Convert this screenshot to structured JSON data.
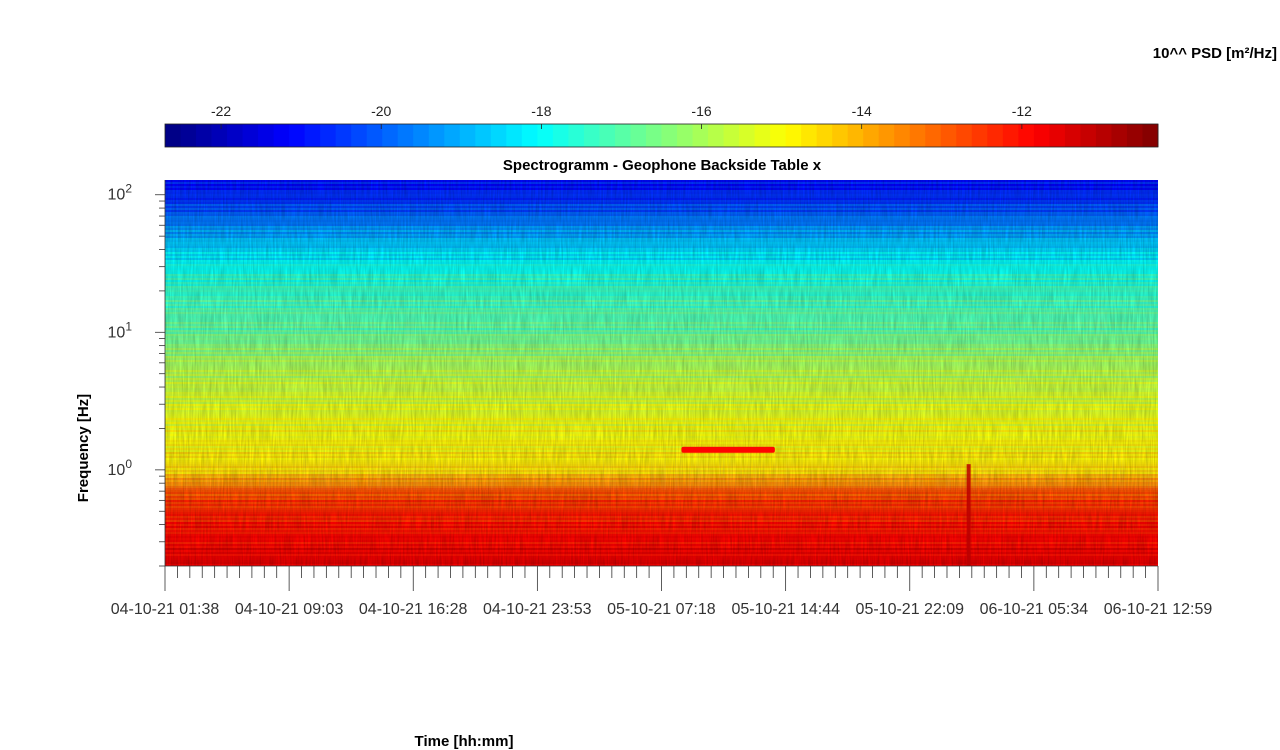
{
  "chart_data": {
    "type": "heatmap",
    "title": "Spectrogramm - Geophone Backside Table x",
    "xlabel": "Time [hh:mm]",
    "ylabel": "Frequency [Hz]",
    "colorbar_label": "10^^ PSD [m²/Hz]",
    "colormap": "jet",
    "colorbar_range": [
      -22.7,
      -10.3
    ],
    "colorbar_ticks": [
      -22,
      -20,
      -18,
      -16,
      -14,
      -12
    ],
    "y_scale": "log",
    "ylim": [
      0.2,
      128
    ],
    "y_ticks": [
      {
        "value": 1,
        "base": "10",
        "exp": "0"
      },
      {
        "value": 10,
        "base": "10",
        "exp": "1"
      },
      {
        "value": 100,
        "base": "10",
        "exp": "2"
      }
    ],
    "x_tick_labels": [
      "04-10-21  01:38",
      "04-10-21  09:03",
      "04-10-21  16:28",
      "04-10-21  23:53",
      "05-10-21  07:18",
      "05-10-21  14:44",
      "05-10-21  22:09",
      "06-10-21  05:34",
      "06-10-21  12:59"
    ],
    "psd_profile": {
      "frequency_hz": [
        0.2,
        0.3,
        0.5,
        0.7,
        0.85,
        1.0,
        1.5,
        2.5,
        4.0,
        6.0,
        8.0,
        10.0,
        15.0,
        25.0,
        40.0,
        60.0,
        90.0,
        128.0
      ],
      "log10_psd": [
        -11.6,
        -11.9,
        -12.3,
        -12.9,
        -13.8,
        -14.6,
        -14.9,
        -15.2,
        -15.6,
        -16.0,
        -16.5,
        -16.9,
        -17.2,
        -17.6,
        -18.5,
        -19.5,
        -20.5,
        -21.0
      ]
    },
    "features": [
      {
        "type": "horizontal_band",
        "freq_hz": 1.4,
        "log10_psd": -11.9,
        "time_start": "05-10-21 08:30",
        "time_end": "05-10-21 14:05"
      },
      {
        "type": "vertical_band",
        "time": "06-10-21 01:40",
        "freq_max_hz": 1.1,
        "log10_psd": -11.0
      }
    ]
  }
}
